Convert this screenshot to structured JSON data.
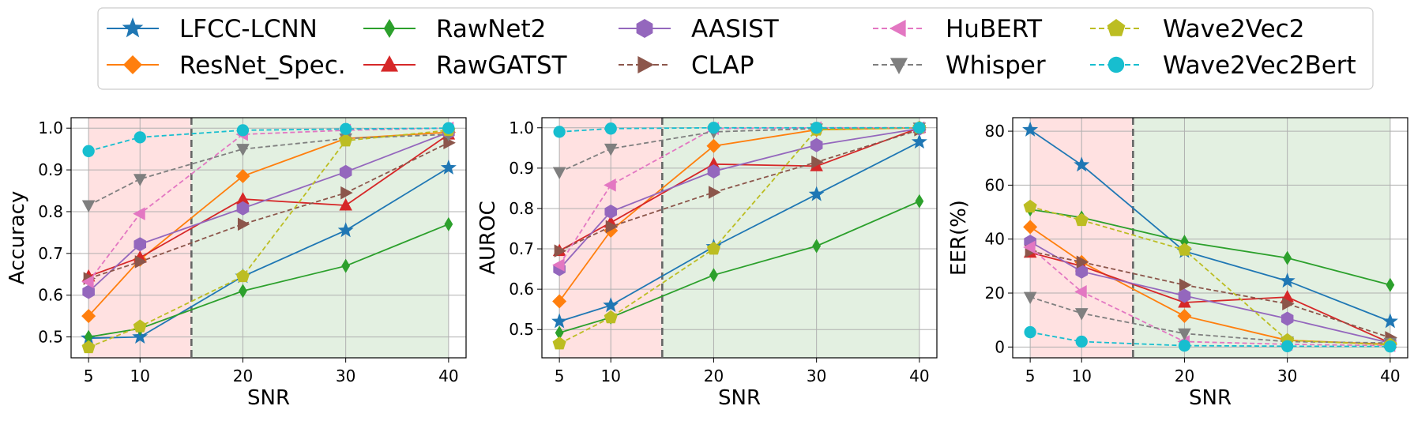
{
  "chart_data": [
    {
      "type": "line",
      "ylabel": "Accuracy",
      "xlabel": "SNR",
      "categories": [
        "5",
        "10",
        "20",
        "30",
        "40"
      ],
      "ylim": [
        0.45,
        1.025
      ],
      "yticks": [
        0.5,
        0.6,
        0.7,
        0.8,
        0.9,
        1.0
      ],
      "ytick_labels": [
        "0.5",
        "0.6",
        "0.7",
        "0.8",
        "0.9",
        "1.0"
      ],
      "series": [
        {
          "name": "LFCC-LCNN",
          "values": [
            0.497,
            0.5,
            0.645,
            0.755,
            0.905
          ]
        },
        {
          "name": "ResNet_Spec.",
          "values": [
            0.55,
            0.685,
            0.885,
            0.975,
            0.99
          ]
        },
        {
          "name": "RawNet2",
          "values": [
            0.5,
            0.52,
            0.61,
            0.67,
            0.77
          ]
        },
        {
          "name": "RawGATST",
          "values": [
            0.645,
            0.69,
            0.83,
            0.815,
            0.985
          ]
        },
        {
          "name": "AASIST",
          "values": [
            0.608,
            0.722,
            0.808,
            0.895,
            0.99
          ]
        },
        {
          "name": "CLAP",
          "values": [
            0.64,
            0.68,
            0.77,
            0.845,
            0.965
          ]
        },
        {
          "name": "HuBERT",
          "values": [
            0.632,
            0.795,
            0.985,
            0.995,
            1.0
          ]
        },
        {
          "name": "Whisper",
          "values": [
            0.815,
            0.878,
            0.95,
            0.975,
            0.985
          ]
        },
        {
          "name": "Wave2Vec2",
          "values": [
            0.475,
            0.525,
            0.645,
            0.97,
            0.995
          ]
        },
        {
          "name": "Wave2Vec2Bert",
          "values": [
            0.945,
            0.978,
            0.995,
            0.998,
            1.0
          ]
        }
      ]
    },
    {
      "type": "line",
      "ylabel": "AUROC",
      "xlabel": "SNR",
      "categories": [
        "5",
        "10",
        "20",
        "30",
        "40"
      ],
      "ylim": [
        0.43,
        1.025
      ],
      "yticks": [
        0.5,
        0.6,
        0.7,
        0.8,
        0.9,
        1.0
      ],
      "ytick_labels": [
        "0.5",
        "0.6",
        "0.7",
        "0.8",
        "0.9",
        "1.0"
      ],
      "series": [
        {
          "name": "LFCC-LCNN",
          "values": [
            0.52,
            0.56,
            0.705,
            0.835,
            0.965
          ]
        },
        {
          "name": "ResNet_Spec.",
          "values": [
            0.57,
            0.745,
            0.955,
            0.995,
            1.0
          ]
        },
        {
          "name": "RawNet2",
          "values": [
            0.492,
            0.53,
            0.635,
            0.707,
            0.818
          ]
        },
        {
          "name": "RawGATST",
          "values": [
            0.695,
            0.765,
            0.91,
            0.905,
            1.0
          ]
        },
        {
          "name": "AASIST",
          "values": [
            0.65,
            0.792,
            0.892,
            0.957,
            0.998
          ]
        },
        {
          "name": "CLAP",
          "values": [
            0.695,
            0.755,
            0.84,
            0.915,
            0.995
          ]
        },
        {
          "name": "HuBERT",
          "values": [
            0.66,
            0.858,
            0.998,
            1.0,
            1.0
          ]
        },
        {
          "name": "Whisper",
          "values": [
            0.89,
            0.948,
            0.99,
            0.998,
            1.0
          ]
        },
        {
          "name": "Wave2Vec2",
          "values": [
            0.465,
            0.53,
            0.7,
            0.995,
            1.0
          ]
        },
        {
          "name": "Wave2Vec2Bert",
          "values": [
            0.99,
            0.998,
            1.0,
            1.0,
            1.0
          ]
        }
      ]
    },
    {
      "type": "line",
      "ylabel": "EER(%)",
      "xlabel": "SNR",
      "categories": [
        "5",
        "10",
        "20",
        "30",
        "40"
      ],
      "ylim": [
        -4,
        85
      ],
      "yticks": [
        0,
        20,
        40,
        60,
        80
      ],
      "ytick_labels": [
        "0",
        "20",
        "40",
        "60",
        "80"
      ],
      "series": [
        {
          "name": "LFCC-LCNN",
          "values": [
            80.5,
            67.5,
            35.5,
            24.5,
            9.5
          ]
        },
        {
          "name": "ResNet_Spec.",
          "values": [
            44.5,
            31.5,
            11.5,
            2.5,
            1.0
          ]
        },
        {
          "name": "RawNet2",
          "values": [
            51.0,
            48.0,
            39.0,
            33.0,
            23.0
          ]
        },
        {
          "name": "RawGATST",
          "values": [
            35.0,
            30.0,
            16.5,
            18.5,
            1.5
          ]
        },
        {
          "name": "AASIST",
          "values": [
            39.0,
            28.0,
            19.0,
            10.5,
            1.5
          ]
        },
        {
          "name": "CLAP",
          "values": [
            35.5,
            31.5,
            23.0,
            16.0,
            3.5
          ]
        },
        {
          "name": "HuBERT",
          "values": [
            37.0,
            20.5,
            2.0,
            1.0,
            0.5
          ]
        },
        {
          "name": "Whisper",
          "values": [
            18.5,
            12.5,
            5.0,
            2.0,
            1.5
          ]
        },
        {
          "name": "Wave2Vec2",
          "values": [
            52.0,
            47.0,
            36.0,
            2.5,
            0.8
          ]
        },
        {
          "name": "Wave2Vec2Bert",
          "values": [
            5.5,
            2.0,
            0.5,
            0.3,
            0.2
          ]
        }
      ]
    }
  ],
  "legend": {
    "placement": "top-center",
    "columns": 5,
    "items": [
      {
        "name": "LFCC-LCNN",
        "color": "#1f77b4",
        "marker": "star",
        "dash": false
      },
      {
        "name": "ResNet_Spec.",
        "color": "#ff7f0e",
        "marker": "diamond",
        "dash": false
      },
      {
        "name": "RawNet2",
        "color": "#2ca02c",
        "marker": "thin-diamond",
        "dash": false
      },
      {
        "name": "RawGATST",
        "color": "#d62728",
        "marker": "triangle-up",
        "dash": false
      },
      {
        "name": "AASIST",
        "color": "#9467bd",
        "marker": "hexagon",
        "dash": false
      },
      {
        "name": "CLAP",
        "color": "#8c564b",
        "marker": "triangle-right",
        "dash": true
      },
      {
        "name": "HuBERT",
        "color": "#e377c2",
        "marker": "triangle-left",
        "dash": true
      },
      {
        "name": "Whisper",
        "color": "#7f7f7f",
        "marker": "triangle-down",
        "dash": true
      },
      {
        "name": "Wave2Vec2",
        "color": "#bcbd22",
        "marker": "pentagon",
        "dash": true
      },
      {
        "name": "Wave2Vec2Bert",
        "color": "#17becf",
        "marker": "circle",
        "dash": true
      }
    ]
  },
  "regions": {
    "threshold_snr": 15,
    "low_snr_color": "#ffe1e1",
    "high_snr_color": "#e3f0e1",
    "threshold_line_color": "#666666"
  }
}
